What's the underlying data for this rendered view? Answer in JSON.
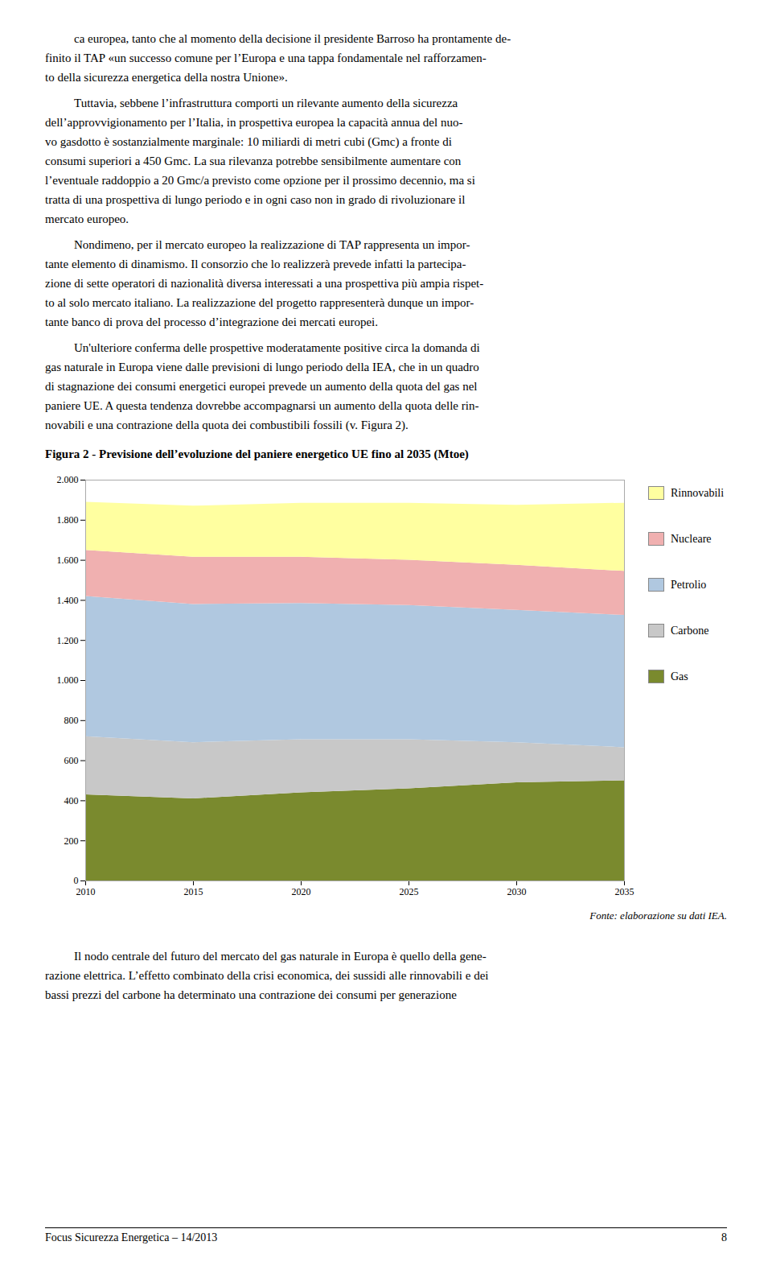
{
  "chart_data": {
    "type": "area",
    "title": "Figura 2 - Previsione dell’evoluzione del paniere energetico UE fino al 2035 (Mtoe)",
    "stacked": true,
    "x": [
      2010,
      2015,
      2020,
      2025,
      2030,
      2035
    ],
    "series": [
      {
        "name": "Gas",
        "color": "#7a8a2e",
        "values": [
          430,
          410,
          440,
          460,
          490,
          500
        ]
      },
      {
        "name": "Carbone",
        "color": "#c8c8c8",
        "values": [
          290,
          280,
          265,
          245,
          200,
          165
        ]
      },
      {
        "name": "Petrolio",
        "color": "#b0c8e0",
        "values": [
          700,
          690,
          680,
          670,
          660,
          660
        ]
      },
      {
        "name": "Nucleare",
        "color": "#f0b0b0",
        "values": [
          230,
          235,
          230,
          225,
          225,
          220
        ]
      },
      {
        "name": "Rinnovabili",
        "color": "#ffffa0",
        "values": [
          240,
          255,
          270,
          285,
          300,
          340
        ]
      }
    ],
    "xlim": [
      2010,
      2035
    ],
    "xticks": [
      2010,
      2015,
      2020,
      2025,
      2030,
      2035
    ],
    "ylim": [
      0,
      2000
    ],
    "yticks": [
      0,
      200,
      400,
      600,
      800,
      {
        "value": 1000,
        "label": "1.000"
      },
      {
        "value": 1200,
        "label": "1.200"
      },
      {
        "value": 1400,
        "label": "1.400"
      },
      {
        "value": 1600,
        "label": "1.600"
      },
      {
        "value": 1800,
        "label": "1.800"
      },
      {
        "value": 2000,
        "label": "2.000"
      }
    ],
    "grid": true,
    "legend": "right",
    "annotations": [
      "Fonte: elaborazione su dati IEA."
    ]
  },
  "page": {
    "paragraphs_before": [
      [
        "ca europea, tanto che al momento della decisione il presidente Barroso ha prontamente de-",
        "finito il TAP «un successo comune per l’Europa e una tappa fondamentale nel rafforzamen-",
        "to della sicurezza energetica della nostra Unione»."
      ],
      [
        "Tuttavia, sebbene l’infrastruttura comporti un rilevante aumento della sicurezza",
        "dell’approvvigionamento per l’Italia, in prospettiva europea la capacità annua del nuo-",
        "vo gasdotto è sostanzialmente marginale: 10 miliardi di metri cubi (Gmc) a fronte di",
        "consumi superiori a 450 Gmc. La sua rilevanza potrebbe sensibilmente aumentare con",
        "l’eventuale raddoppio a 20 Gmc/a previsto come opzione per il prossimo decennio, ma si",
        "tratta di una prospettiva di lungo periodo e in ogni caso non in grado di rivoluzionare il",
        "mercato europeo."
      ],
      [
        "Nondimeno, per il mercato europeo la realizzazione di TAP rappresenta un impor-",
        "tante elemento di dinamismo. Il consorzio che lo realizzerà prevede infatti la partecipa-",
        "zione di sette operatori di nazionalità diversa interessati a una prospettiva più ampia rispet-",
        "to al solo mercato italiano. La realizzazione del progetto rappresenterà dunque un impor-",
        "tante banco di prova del processo d’integrazione dei mercati europei."
      ],
      [
        "Un'ulteriore conferma delle prospettive moderatamente positive circa la domanda di",
        "gas naturale in Europa viene dalle previsioni di lungo periodo della IEA, che in un quadro",
        "di stagnazione dei consumi energetici europei prevede un aumento della quota del gas nel",
        "paniere UE. A questa tendenza dovrebbe accompagnarsi un aumento della quota delle rin-",
        "novabili e una contrazione della quota dei combustibili fossili (v. Figura 2)."
      ]
    ],
    "paragraphs_after": [
      [
        "Il nodo centrale del futuro del mercato del gas naturale in Europa è quello della gene-",
        "razione elettrica. L’effetto combinato della crisi economica, dei sussidi alle rinnovabili e dei",
        "bassi prezzi del carbone ha determinato una contrazione dei consumi per generazione"
      ]
    ],
    "footer_left": "Focus Sicurezza Energetica – 14/2013",
    "footer_right": "8"
  }
}
